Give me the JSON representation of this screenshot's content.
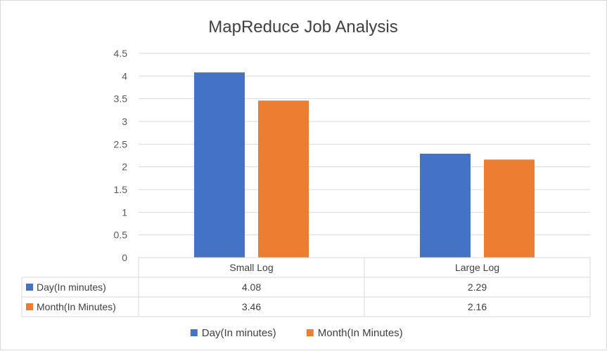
{
  "chart_data": {
    "type": "bar",
    "title": "MapReduce Job Analysis",
    "categories": [
      "Small Log",
      "Large Log"
    ],
    "series": [
      {
        "name": "Day(In minutes)",
        "values": [
          4.08,
          2.29
        ],
        "labels": [
          "4.08",
          "2.29"
        ],
        "color": "#4472C4"
      },
      {
        "name": "Month(In Minutes)",
        "values": [
          3.46,
          2.16
        ],
        "labels": [
          "3.46",
          "2.16"
        ],
        "color": "#ED7D31"
      }
    ],
    "ylim": [
      0,
      4.5
    ],
    "yticks": [
      "0",
      "0.5",
      "1",
      "1.5",
      "2",
      "2.5",
      "3",
      "3.5",
      "4",
      "4.5"
    ],
    "grid": true,
    "data_table": true,
    "legend_position": "bottom"
  }
}
